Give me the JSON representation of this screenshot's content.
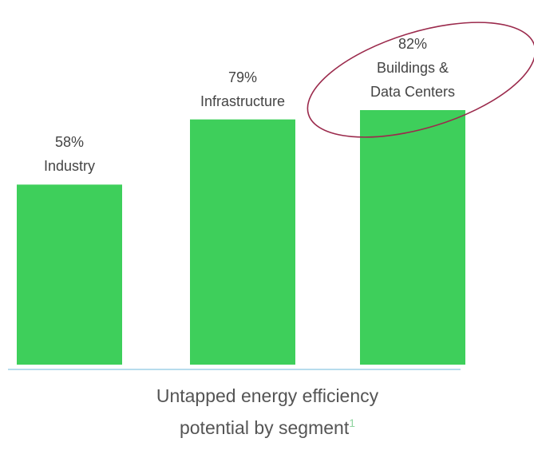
{
  "chart_data": {
    "type": "bar",
    "title": "Untapped energy efficiency potential by segment",
    "title_footnote": "1",
    "categories": [
      "Industry",
      "Infrastructure",
      "Buildings & Data Centers"
    ],
    "values": [
      58,
      79,
      82
    ],
    "value_labels": [
      "58%",
      "79%",
      "82%"
    ],
    "color": "#3ecf5b"
  }
}
